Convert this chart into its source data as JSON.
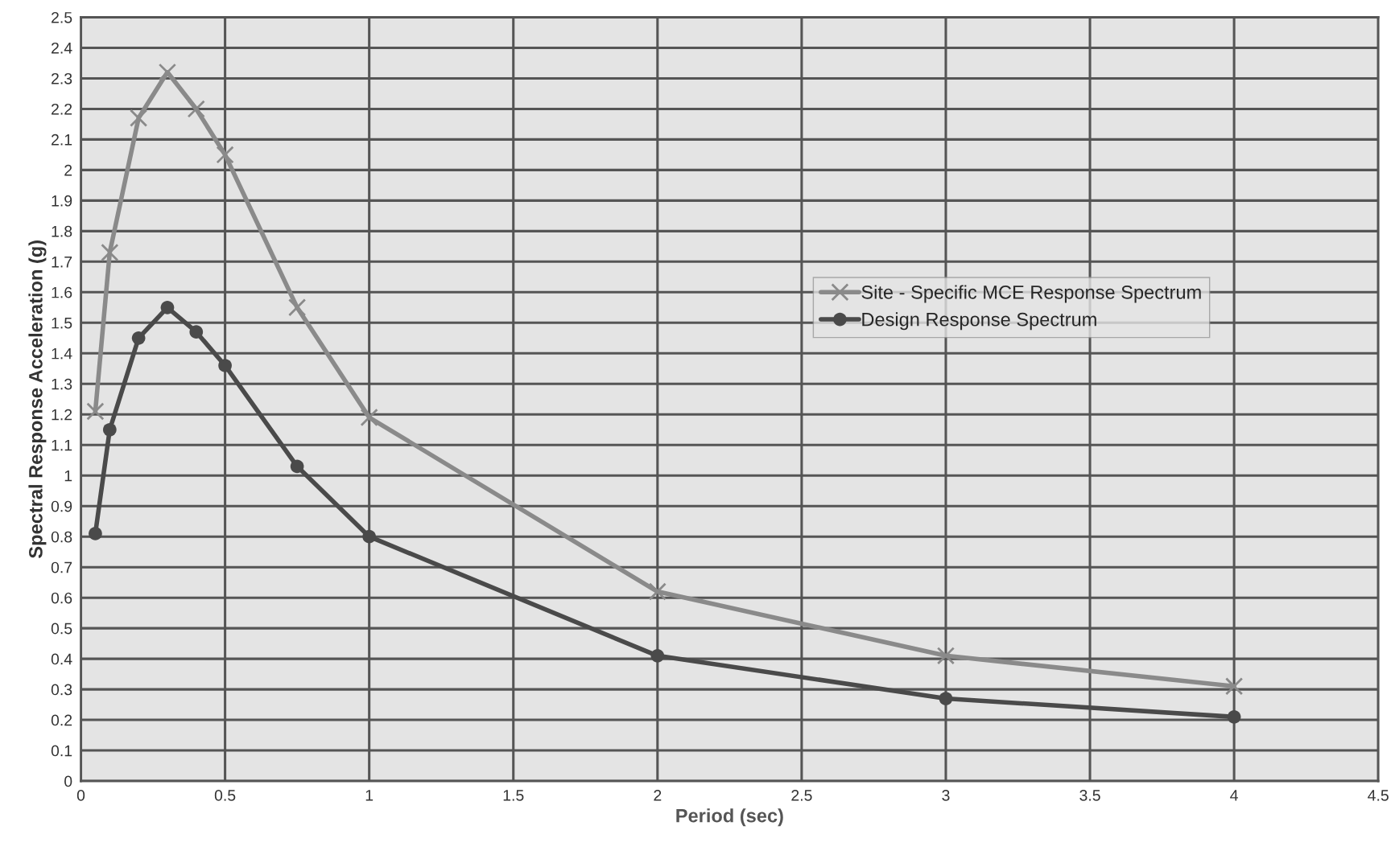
{
  "chart_data": {
    "type": "line",
    "xlabel": "Period (sec)",
    "ylabel": "Spectral Response Acceleration (g)",
    "x": [
      0.05,
      0.1,
      0.2,
      0.3,
      0.4,
      0.5,
      0.75,
      1,
      2,
      3,
      4
    ],
    "series": [
      {
        "name": "Site - Specific MCE Response Spectrum",
        "color": "#8a8a8a",
        "marker": "cross",
        "values": [
          1.21,
          1.73,
          2.17,
          2.32,
          2.2,
          2.05,
          1.55,
          1.19,
          0.62,
          0.41,
          0.31
        ]
      },
      {
        "name": "Design Response Spectrum",
        "color": "#4a4a4a",
        "marker": "circle",
        "values": [
          0.81,
          1.15,
          1.45,
          1.55,
          1.47,
          1.36,
          1.03,
          0.8,
          0.41,
          0.27,
          0.21
        ]
      }
    ],
    "xlim": [
      0,
      4.5
    ],
    "xticks": [
      0,
      0.5,
      1,
      1.5,
      2,
      2.5,
      3,
      3.5,
      4,
      4.5
    ],
    "ylim": [
      0,
      2.5
    ],
    "yticks": [
      0,
      0.1,
      0.2,
      0.3,
      0.4,
      0.5,
      0.6,
      0.7,
      0.8,
      0.9,
      1,
      1.1,
      1.2,
      1.3,
      1.4,
      1.5,
      1.6,
      1.7,
      1.8,
      1.9,
      2,
      2.1,
      2.2,
      2.3,
      2.4,
      2.5
    ],
    "grid": true,
    "legend": "right",
    "line_style": "solid"
  }
}
